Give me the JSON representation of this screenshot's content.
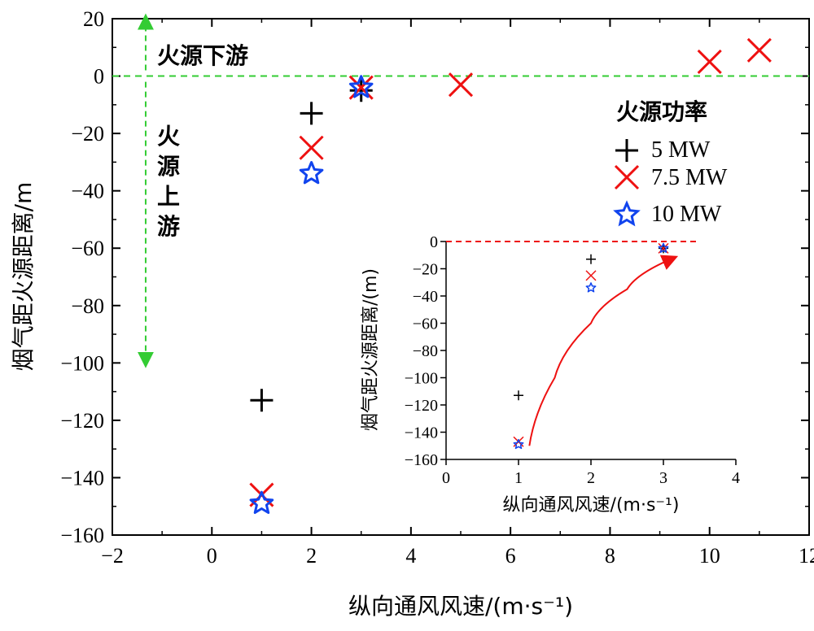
{
  "chart_data": [
    {
      "type": "scatter",
      "title": "",
      "xlabel": "纵向通风风速/(m·s⁻¹)",
      "ylabel": "烟气距火源距离/m",
      "xlim": [
        -2,
        12
      ],
      "ylim": [
        -160,
        20
      ],
      "xticks": [
        "−2",
        "0",
        "2",
        "4",
        "6",
        "8",
        "10",
        "12"
      ],
      "yticks": [
        "20",
        "0",
        "−20",
        "−40",
        "−60",
        "−80",
        "−100",
        "−120",
        "−140",
        "−160"
      ],
      "reference_line": {
        "y": 0,
        "color": "#33cc33",
        "style": "dashed"
      },
      "annotations": {
        "downstream": "火源下游",
        "upstream": [
          "火",
          "源",
          "上",
          "游"
        ]
      },
      "legend": {
        "title": "火源功率",
        "position": "right"
      },
      "series": [
        {
          "name": "5 MW",
          "marker": "plus",
          "color": "#000000",
          "points": [
            [
              1,
              -113
            ],
            [
              2,
              -13
            ],
            [
              3,
              -5
            ]
          ]
        },
        {
          "name": "7.5 MW",
          "marker": "x",
          "color": "#ee1111",
          "points": [
            [
              1,
              -146
            ],
            [
              2,
              -25
            ],
            [
              3,
              -4
            ],
            [
              5,
              -3
            ],
            [
              10,
              5
            ],
            [
              11,
              9
            ]
          ]
        },
        {
          "name": "10 MW",
          "marker": "star",
          "color": "#1144ee",
          "points": [
            [
              1,
              -149
            ],
            [
              2,
              -34
            ],
            [
              3,
              -4
            ]
          ]
        }
      ]
    },
    {
      "type": "scatter",
      "title": "",
      "xlabel": "纵向通风风速/(m·s⁻¹)",
      "ylabel": "烟气距火源距离/(m)",
      "xlim": [
        0,
        4
      ],
      "ylim": [
        -160,
        0
      ],
      "xticks": [
        "0",
        "1",
        "2",
        "3",
        "4"
      ],
      "yticks": [
        "0",
        "−20",
        "−40",
        "−60",
        "−80",
        "−100",
        "−120",
        "−140",
        "−160"
      ],
      "reference_line": {
        "y": 0,
        "color": "#ee1111",
        "style": "dashed"
      },
      "trend_arrow": {
        "color": "#ee1111",
        "points": [
          [
            1.15,
            -150
          ],
          [
            1.5,
            -100
          ],
          [
            2.0,
            -60
          ],
          [
            2.5,
            -35
          ],
          [
            3.1,
            -13
          ]
        ]
      },
      "series": [
        {
          "name": "5 MW",
          "marker": "plus",
          "color": "#000000",
          "points": [
            [
              1,
              -113
            ],
            [
              2,
              -13
            ],
            [
              3,
              -5
            ]
          ]
        },
        {
          "name": "7.5 MW",
          "marker": "x",
          "color": "#ee1111",
          "points": [
            [
              1,
              -147
            ],
            [
              2,
              -25
            ],
            [
              3,
              -5
            ]
          ]
        },
        {
          "name": "10 MW",
          "marker": "star",
          "color": "#1144ee",
          "points": [
            [
              1,
              -149
            ],
            [
              2,
              -34
            ],
            [
              3,
              -5
            ]
          ]
        }
      ]
    }
  ]
}
